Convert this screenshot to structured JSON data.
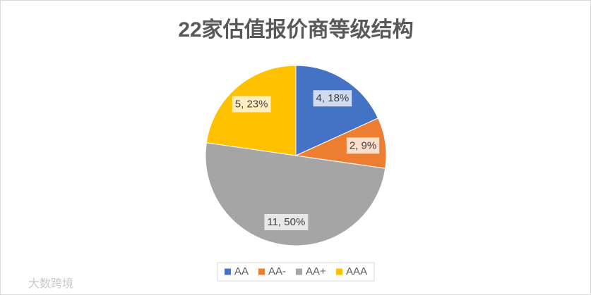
{
  "chart_data": {
    "type": "pie",
    "title": "22家估值报价商等级结构",
    "categories": [
      "AA",
      "AA-",
      "AA+",
      "AAA"
    ],
    "values": [
      4,
      2,
      11,
      5
    ],
    "value_labels": [
      "4, 18%",
      "2, 9%",
      "11, 50%",
      "5, 23%"
    ],
    "colors": [
      "#4472c4",
      "#ed7d31",
      "#a5a5a5",
      "#ffc000"
    ],
    "legend": "bottom",
    "watermark": "大数跨境"
  }
}
